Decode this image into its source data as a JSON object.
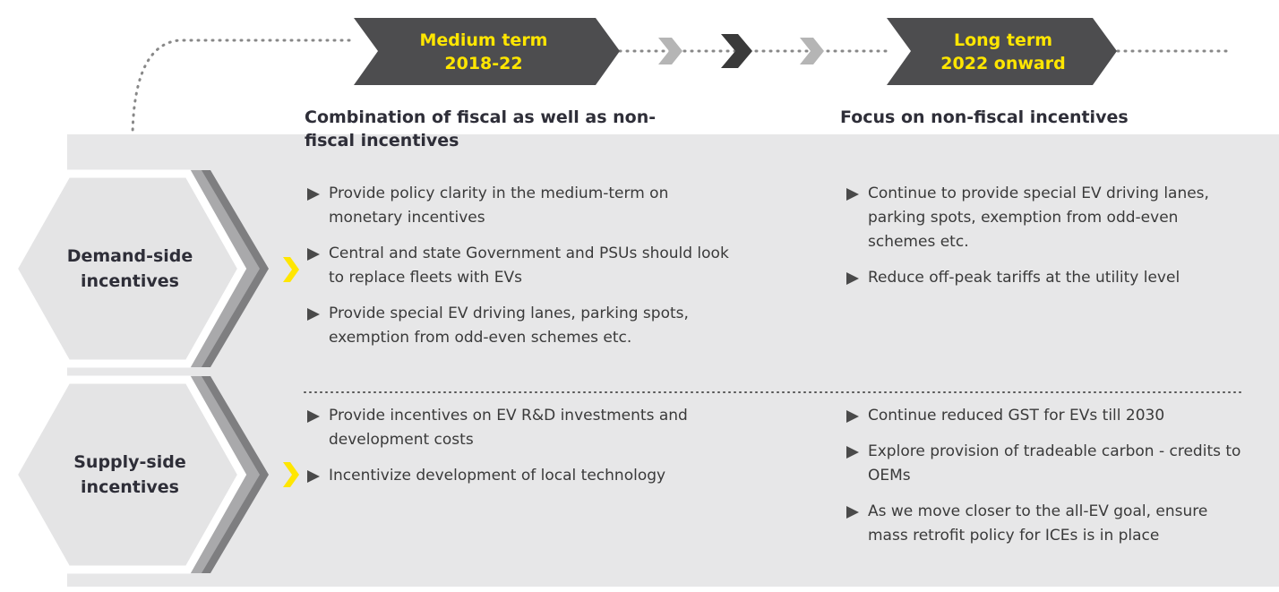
{
  "phases": [
    {
      "title": "Medium term",
      "period": "2018-22",
      "heading": "Combination of fiscal as well as non-fiscal incentives"
    },
    {
      "title": "Long term",
      "period": "2022 onward",
      "heading": "Focus on non-fiscal incentives"
    }
  ],
  "rows": [
    {
      "label": "Demand-side incentives",
      "medium": [
        "Provide policy clarity in the medium-term on monetary incentives",
        "Central and state Government and PSUs should look to replace fleets with EVs",
        "Provide special EV driving lanes, parking spots, exemption from odd-even schemes etc."
      ],
      "long": [
        "Continue to provide special EV driving lanes, parking spots, exemption from odd-even schemes etc.",
        "Reduce off-peak tariffs at the utility level"
      ]
    },
    {
      "label": "Supply-side incentives",
      "medium": [
        "Provide incentives on EV R&D investments and development costs",
        "Incentivize development of local technology"
      ],
      "long": [
        "Continue reduced GST for EVs till 2030",
        "Explore provision of tradeable carbon - credits to OEMs",
        "As we move closer to the all-EV goal, ensure mass retrofit policy for ICEs is in place"
      ]
    }
  ]
}
